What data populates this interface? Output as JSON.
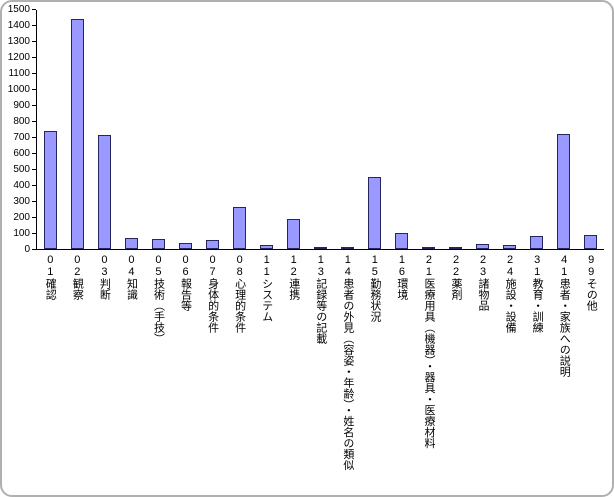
{
  "chart_data": {
    "type": "bar",
    "title": "",
    "xlabel": "",
    "ylabel": "",
    "legend": "none",
    "grid": false,
    "ylim": [
      0,
      1500
    ],
    "ytick_step": 100,
    "categories": [
      "01確認",
      "02観察",
      "03判断",
      "04知識",
      "05技術（手技）",
      "06報告等",
      "07身体的条件",
      "08心理的条件",
      "11システム",
      "12連携",
      "13記録等の記載",
      "14患者の外見（容姿・年齢）・姓名の類似",
      "15勤務状況",
      "16環境",
      "21医療用具（機器）・器具・医療材料",
      "22薬剤",
      "23諸物品",
      "24施設・設備",
      "31教育・訓練",
      "41患者・家族への説明",
      "99その他"
    ],
    "values": [
      740,
      1435,
      710,
      70,
      60,
      35,
      55,
      265,
      25,
      185,
      10,
      15,
      450,
      100,
      15,
      10,
      30,
      25,
      80,
      720,
      90
    ],
    "colors": {
      "bar_fill": "#9999ff",
      "bar_border": "#26265e",
      "axis": "#000000",
      "background": "#ffffff",
      "frame_border": "#b0b0b0"
    }
  }
}
